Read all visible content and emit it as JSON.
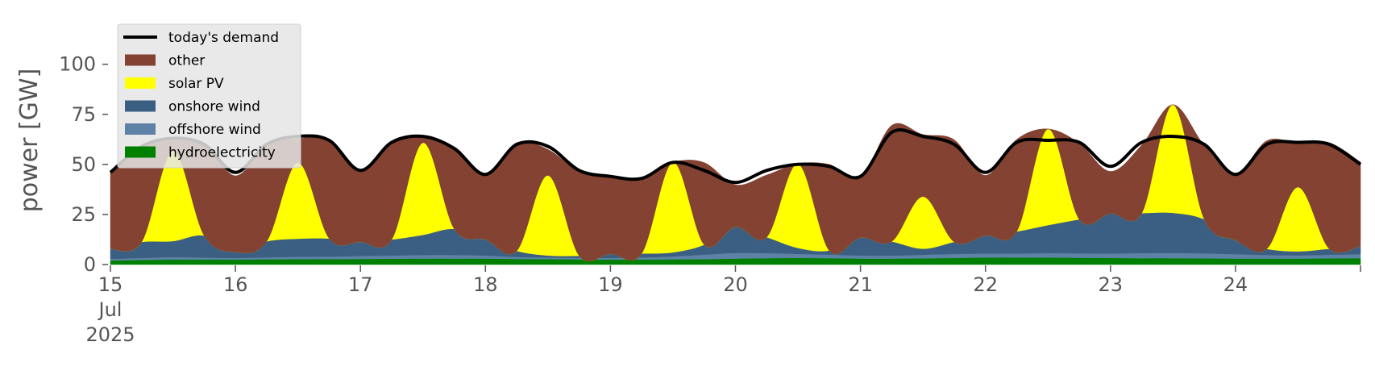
{
  "chart_data": {
    "type": "area",
    "xlabel": "",
    "ylabel": "power [GW]",
    "ylim": [
      0,
      120
    ],
    "yticks": [
      0,
      25,
      50,
      75,
      100
    ],
    "xlim": [
      "2025-07-15",
      "2025-07-25"
    ],
    "x_ticks": [
      {
        "date": "2025-07-15",
        "lines": [
          "15",
          "Jul",
          "2025"
        ]
      },
      {
        "date": "2025-07-16",
        "lines": [
          "16"
        ]
      },
      {
        "date": "2025-07-17",
        "lines": [
          "17"
        ]
      },
      {
        "date": "2025-07-18",
        "lines": [
          "18"
        ]
      },
      {
        "date": "2025-07-19",
        "lines": [
          "19"
        ]
      },
      {
        "date": "2025-07-20",
        "lines": [
          "20"
        ]
      },
      {
        "date": "2025-07-21",
        "lines": [
          "21"
        ]
      },
      {
        "date": "2025-07-22",
        "lines": [
          "22"
        ]
      },
      {
        "date": "2025-07-23",
        "lines": [
          "23"
        ]
      },
      {
        "date": "2025-07-24",
        "lines": [
          "24"
        ]
      }
    ],
    "grid": false,
    "legend_position": "top-left",
    "legend": [
      {
        "label": "today's demand",
        "kind": "line",
        "color": "#000000"
      },
      {
        "label": "other",
        "kind": "patch",
        "color": "#834232"
      },
      {
        "label": "solar PV",
        "kind": "patch",
        "color": "#ffff00"
      },
      {
        "label": "onshore wind",
        "kind": "patch",
        "color": "#3b5f82"
      },
      {
        "label": "offshore wind",
        "kind": "patch",
        "color": "#5d82a6"
      },
      {
        "label": "hydroelectricity",
        "kind": "patch",
        "color": "#008000"
      }
    ],
    "x": [
      "2025-07-15 00:00",
      "2025-07-15 06:00",
      "2025-07-15 12:00",
      "2025-07-15 18:00",
      "2025-07-16 00:00",
      "2025-07-16 06:00",
      "2025-07-16 12:00",
      "2025-07-16 18:00",
      "2025-07-17 00:00",
      "2025-07-17 06:00",
      "2025-07-17 12:00",
      "2025-07-17 18:00",
      "2025-07-18 00:00",
      "2025-07-18 06:00",
      "2025-07-18 12:00",
      "2025-07-18 18:00",
      "2025-07-19 00:00",
      "2025-07-19 06:00",
      "2025-07-19 12:00",
      "2025-07-19 18:00",
      "2025-07-20 00:00",
      "2025-07-20 06:00",
      "2025-07-20 12:00",
      "2025-07-20 18:00",
      "2025-07-21 00:00",
      "2025-07-21 06:00",
      "2025-07-21 12:00",
      "2025-07-21 18:00",
      "2025-07-22 00:00",
      "2025-07-22 06:00",
      "2025-07-22 12:00",
      "2025-07-22 18:00",
      "2025-07-23 00:00",
      "2025-07-23 06:00",
      "2025-07-23 12:00",
      "2025-07-23 18:00",
      "2025-07-24 00:00",
      "2025-07-24 06:00",
      "2025-07-24 12:00",
      "2025-07-24 18:00",
      "2025-07-25 00:00"
    ],
    "series": [
      {
        "name": "hydroelectricity",
        "color": "#008000",
        "values": [
          2.0,
          2.3,
          2.5,
          2.5,
          2.5,
          2.6,
          2.7,
          2.7,
          2.8,
          2.9,
          3.0,
          3.0,
          3.0,
          2.8,
          2.7,
          2.6,
          2.5,
          2.5,
          2.6,
          2.7,
          3.0,
          3.2,
          3.3,
          3.2,
          3.0,
          3.0,
          3.1,
          3.3,
          3.5,
          3.5,
          3.5,
          3.4,
          3.3,
          3.2,
          3.2,
          3.1,
          3.0,
          3.0,
          3.0,
          3.1,
          3.2
        ]
      },
      {
        "name": "offshore wind",
        "color": "#5d82a6",
        "values": [
          0.8,
          1.0,
          1.2,
          1.0,
          0.8,
          1.0,
          1.2,
          1.3,
          1.5,
          1.6,
          1.8,
          1.8,
          1.5,
          1.0,
          0.8,
          0.8,
          0.8,
          1.0,
          1.5,
          2.2,
          2.8,
          2.5,
          2.0,
          1.8,
          1.5,
          1.5,
          1.8,
          2.0,
          2.0,
          2.0,
          2.2,
          2.2,
          2.2,
          2.5,
          2.6,
          2.5,
          2.2,
          1.8,
          1.6,
          1.8,
          2.0
        ]
      },
      {
        "name": "onshore wind",
        "color": "#3b5f82",
        "values": [
          5,
          8,
          8,
          11,
          3,
          8,
          9,
          9,
          7,
          8,
          10,
          13,
          8,
          3,
          1,
          1,
          2,
          2,
          2,
          5,
          13,
          8,
          3,
          2,
          9,
          7,
          3,
          6,
          9,
          11,
          14,
          17,
          20,
          20,
          20,
          17,
          7,
          3,
          2,
          3,
          4
        ]
      },
      {
        "name": "solar PV",
        "color": "#ffff00",
        "values": [
          0,
          0,
          45,
          0,
          0,
          0,
          38,
          0,
          0,
          0,
          46,
          0,
          0,
          0,
          40,
          0,
          0,
          0,
          45,
          0,
          0,
          0,
          42,
          0,
          0,
          0,
          26,
          0,
          0,
          0,
          48,
          0,
          0,
          0,
          54,
          0,
          0,
          0,
          32,
          0,
          0
        ]
      },
      {
        "name": "other",
        "color": "#834232",
        "values": [
          38,
          48,
          6,
          46,
          38,
          48,
          12,
          49,
          35,
          48,
          3,
          40,
          33,
          54,
          13,
          42,
          38,
          38,
          0,
          41,
          21,
          31,
          0,
          43,
          30,
          58,
          31,
          51,
          30,
          46,
          0,
          38,
          21,
          34,
          0,
          37,
          33,
          54,
          22,
          53,
          42
        ]
      },
      {
        "name": "today's demand",
        "color": "#000000",
        "kind": "line",
        "values": [
          46,
          59,
          63,
          60,
          46,
          60,
          64,
          62,
          47,
          61,
          64,
          58,
          45,
          60,
          59,
          47,
          44,
          43,
          51,
          47,
          41,
          47,
          50,
          49,
          44,
          66,
          64,
          60,
          46,
          61,
          62,
          61,
          49,
          61,
          64,
          60,
          45,
          60,
          61,
          60,
          50
        ]
      }
    ]
  }
}
